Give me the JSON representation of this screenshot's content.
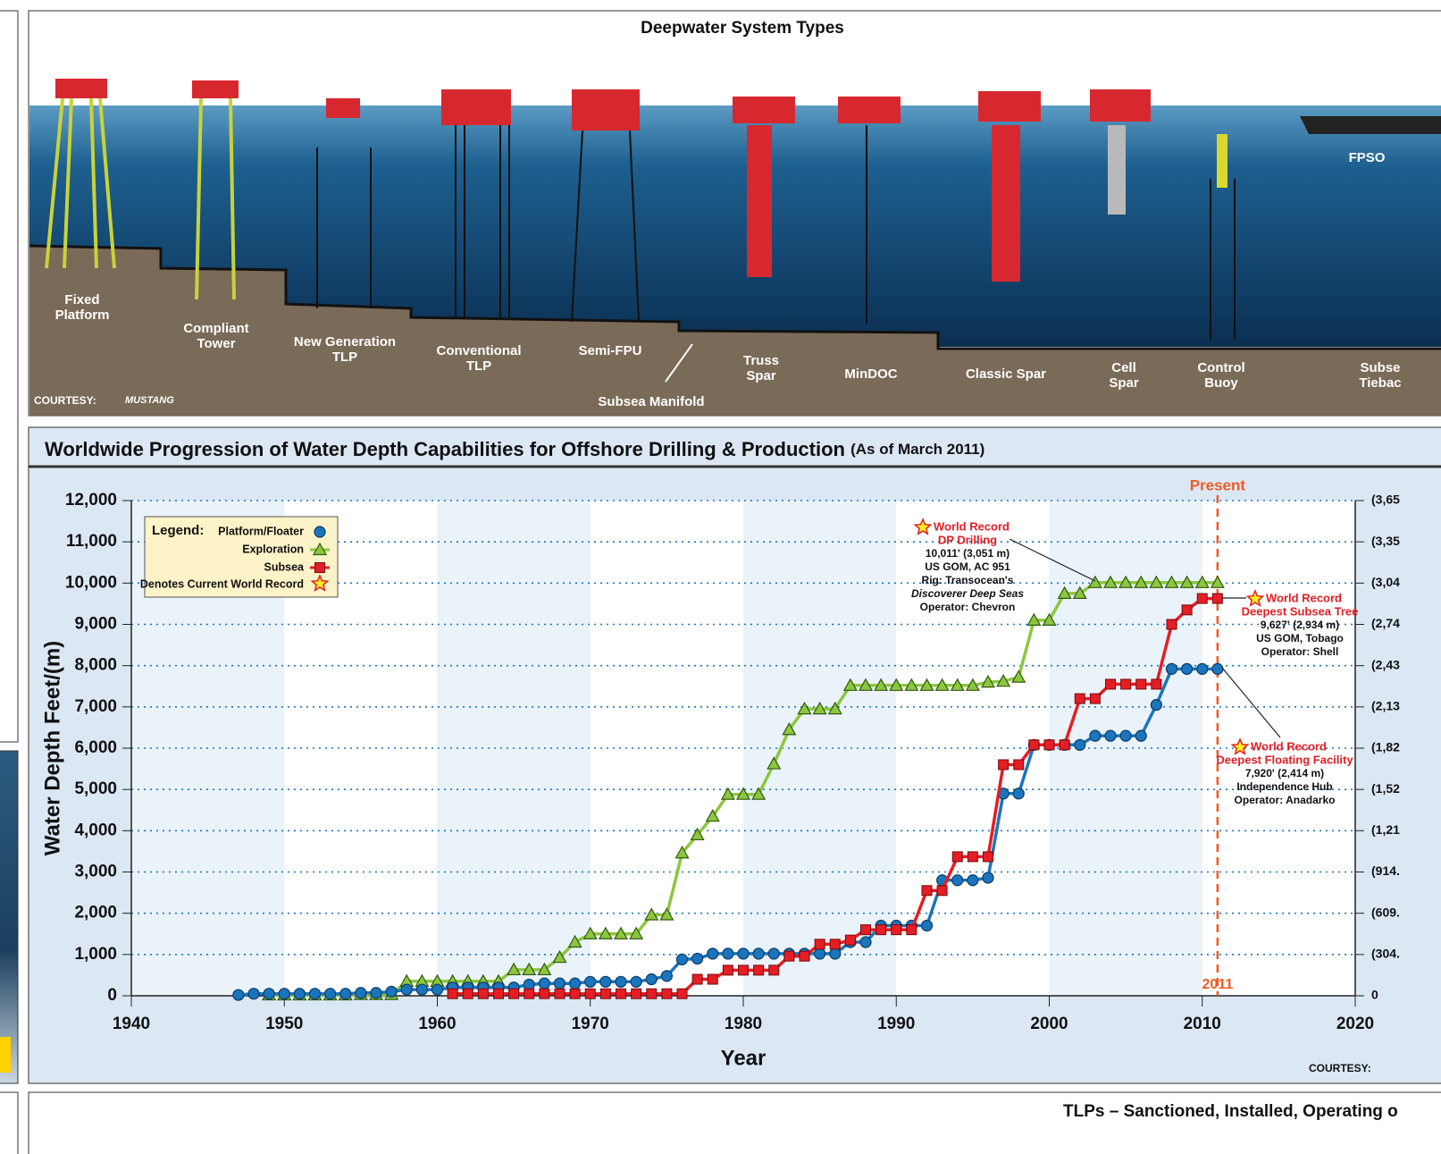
{
  "illustration": {
    "title": "Deepwater System Types",
    "labels": [
      {
        "lines": [
          "Fixed",
          "Platform"
        ]
      },
      {
        "lines": [
          "Compliant",
          "Tower"
        ]
      },
      {
        "lines": [
          "New Generation",
          "TLP"
        ]
      },
      {
        "lines": [
          "Conventional",
          "TLP"
        ]
      },
      {
        "lines": [
          "Semi-FPU"
        ]
      },
      {
        "lines": [
          "Subsea Manifold"
        ]
      },
      {
        "lines": [
          "Truss",
          "Spar"
        ]
      },
      {
        "lines": [
          "MinDOC"
        ]
      },
      {
        "lines": [
          "Classic Spar"
        ]
      },
      {
        "lines": [
          "Cell",
          "Spar"
        ]
      },
      {
        "lines": [
          "Control",
          "Buoy"
        ]
      },
      {
        "lines": [
          "FPSO"
        ]
      },
      {
        "lines": [
          "Subse",
          "Tiebac"
        ]
      }
    ],
    "courtesy": "COURTESY:",
    "logo": "MUSTANG"
  },
  "chart_data": {
    "type": "line",
    "title": "Worldwide Progression of Water Depth Capabilities for Offshore Drilling & Production",
    "subtitle": "(As of March 2011)",
    "x_label": "Year",
    "y_label": "Water Depth Feet/(m)",
    "xlim": [
      1940,
      2020
    ],
    "xticks": [
      1940,
      1950,
      1960,
      1970,
      1980,
      1990,
      2000,
      2010,
      2020
    ],
    "ylim": [
      0,
      12000
    ],
    "yticks": [
      0,
      {
        "value": 1000,
        "label": "1,000"
      },
      {
        "value": 2000,
        "label": "2,000"
      },
      {
        "value": 3000,
        "label": "3,000"
      },
      {
        "value": 4000,
        "label": "4,000"
      },
      {
        "value": 5000,
        "label": "5,000"
      },
      {
        "value": 6000,
        "label": "6,000"
      },
      {
        "value": 7000,
        "label": "7,000"
      },
      {
        "value": 8000,
        "label": "8,000"
      },
      {
        "value": 9000,
        "label": "9,000"
      },
      {
        "value": 10000,
        "label": "10,000"
      },
      {
        "value": 11000,
        "label": "11,000"
      },
      {
        "value": 12000,
        "label": "12,000"
      }
    ],
    "y2lim": [
      0,
      3657.6
    ],
    "y2ticks": [
      0,
      {
        "value": 304.8,
        "label": "(304."
      },
      {
        "value": 609.6,
        "label": "(609."
      },
      {
        "value": 914.4,
        "label": "(914."
      },
      {
        "value": 1219.2,
        "label": "(1,21"
      },
      {
        "value": 1524,
        "label": "(1,52"
      },
      {
        "value": 1828.8,
        "label": "(1,82"
      },
      {
        "value": 2133.6,
        "label": "(2,13"
      },
      {
        "value": 2438.4,
        "label": "(2,43"
      },
      {
        "value": 2743.2,
        "label": "(2,74"
      },
      {
        "value": 3048,
        "label": "(3,04"
      },
      {
        "value": 3352.8,
        "label": "(3,35"
      },
      {
        "value": 3657.6,
        "label": "(3,65"
      }
    ],
    "grid": true,
    "legend_title": "Legend:",
    "legend_record": "Denotes Current World Record",
    "present": {
      "label": "Present",
      "year": 2011
    },
    "series": [
      {
        "name": "Platform/Floater",
        "color": "#1b75bc",
        "marker": "circle",
        "x": [
          1947,
          1948,
          1949,
          1950,
          1951,
          1952,
          1953,
          1954,
          1955,
          1956,
          1957,
          1958,
          1959,
          1960,
          1961,
          1962,
          1963,
          1964,
          1965,
          1966,
          1967,
          1968,
          1969,
          1970,
          1971,
          1972,
          1973,
          1974,
          1975,
          1976,
          1977,
          1978,
          1979,
          1980,
          1981,
          1982,
          1983,
          1984,
          1985,
          1986,
          1987,
          1988,
          1989,
          1990,
          1991,
          1992,
          1993,
          1994,
          1995,
          1996,
          1997,
          1998,
          1999,
          2000,
          2001,
          2002,
          2003,
          2004,
          2005,
          2006,
          2007,
          2008,
          2009,
          2010,
          2011
        ],
        "values": [
          20,
          50,
          50,
          50,
          50,
          50,
          50,
          50,
          70,
          70,
          100,
          150,
          150,
          150,
          200,
          200,
          200,
          200,
          200,
          270,
          300,
          300,
          300,
          340,
          340,
          340,
          340,
          400,
          480,
          880,
          900,
          1020,
          1020,
          1020,
          1020,
          1020,
          1020,
          1020,
          1020,
          1020,
          1300,
          1300,
          1700,
          1700,
          1700,
          1700,
          2800,
          2800,
          2800,
          2860,
          4900,
          4900,
          6080,
          6080,
          6080,
          6080,
          6300,
          6300,
          6300,
          6300,
          7050,
          7920,
          7920,
          7920,
          7920
        ]
      },
      {
        "name": "Exploration",
        "color": "#8dc63f",
        "marker": "triangle",
        "x": [
          1949,
          1950,
          1951,
          1952,
          1953,
          1954,
          1955,
          1956,
          1957,
          1958,
          1959,
          1960,
          1961,
          1962,
          1963,
          1964,
          1965,
          1966,
          1967,
          1968,
          1969,
          1970,
          1971,
          1972,
          1973,
          1974,
          1975,
          1976,
          1977,
          1978,
          1979,
          1980,
          1981,
          1982,
          1983,
          1984,
          1985,
          1986,
          1987,
          1988,
          1989,
          1990,
          1991,
          1992,
          1993,
          1994,
          1995,
          1996,
          1997,
          1998,
          1999,
          2000,
          2001,
          2002,
          2003,
          2004,
          2005,
          2006,
          2007,
          2008,
          2009,
          2010,
          2011
        ],
        "values": [
          20,
          20,
          20,
          20,
          20,
          20,
          30,
          30,
          30,
          350,
          350,
          350,
          350,
          350,
          350,
          350,
          630,
          630,
          630,
          930,
          1300,
          1500,
          1500,
          1500,
          1500,
          1960,
          1960,
          3460,
          3900,
          4350,
          4880,
          4880,
          4880,
          5620,
          6450,
          6950,
          6950,
          6950,
          7520,
          7520,
          7520,
          7520,
          7520,
          7520,
          7520,
          7520,
          7520,
          7600,
          7620,
          7720,
          9100,
          9100,
          9750,
          9750,
          10011,
          10011,
          10011,
          10011,
          10011,
          10011,
          10011,
          10011,
          10011
        ]
      },
      {
        "name": "Subsea",
        "color": "#e31e24",
        "marker": "square",
        "x": [
          1961,
          1962,
          1963,
          1964,
          1965,
          1966,
          1967,
          1968,
          1969,
          1970,
          1971,
          1972,
          1973,
          1974,
          1975,
          1976,
          1977,
          1978,
          1979,
          1980,
          1981,
          1982,
          1983,
          1984,
          1985,
          1986,
          1987,
          1988,
          1989,
          1990,
          1991,
          1992,
          1993,
          1994,
          1995,
          1996,
          1997,
          1998,
          1999,
          2000,
          2001,
          2002,
          2003,
          2004,
          2005,
          2006,
          2007,
          2008,
          2009,
          2010,
          2011
        ],
        "values": [
          50,
          50,
          50,
          50,
          50,
          50,
          50,
          50,
          50,
          50,
          50,
          50,
          50,
          50,
          50,
          50,
          400,
          400,
          620,
          620,
          620,
          620,
          960,
          960,
          1250,
          1250,
          1350,
          1600,
          1600,
          1600,
          1600,
          2550,
          2550,
          3370,
          3370,
          3370,
          5600,
          5600,
          6080,
          6080,
          6080,
          7200,
          7200,
          7550,
          7550,
          7550,
          7550,
          9000,
          9350,
          9627,
          9627
        ]
      }
    ],
    "annotations": [
      {
        "title": [
          "World Record",
          "DP Drilling"
        ],
        "lines": [
          "10,011' (3,051 m)",
          "US GOM, AC 951",
          "Rig: Transocean's",
          "Discoverer Deep Seas",
          "Operator: Chevron"
        ]
      },
      {
        "title": [
          "World Record",
          "Deepest Subsea Tree"
        ],
        "lines": [
          "9,627' (2,934 m)",
          "US GOM, Tobago",
          "Operator: Shell"
        ]
      },
      {
        "title": [
          "World Record",
          "Deepest Floating Facility"
        ],
        "lines": [
          "7,920' (2,414 m)",
          "Independence Hub",
          "Operator: Anadarko"
        ]
      }
    ],
    "courtesy": "COURTESY:"
  },
  "footer": {
    "title": "TLPs – Sanctioned, Installed, Operating o"
  }
}
